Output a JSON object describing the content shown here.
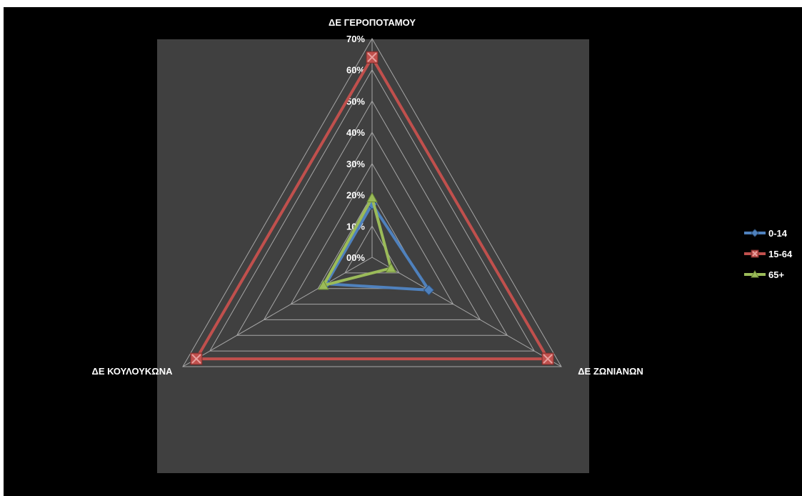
{
  "chart_data": {
    "type": "radar",
    "categories": [
      "ΔΕ ΓΕΡΟΠΟΤΑΜΟΥ",
      "ΔΕ ΖΩΝΙΑΝΩΝ",
      "ΔΕ ΚΟΥΛΟΥΚΩΝΑ"
    ],
    "radial_ticks": [
      "00%",
      "10%",
      "20%",
      "30%",
      "40%",
      "50%",
      "60%",
      "70%"
    ],
    "rlim": [
      0,
      0.7
    ],
    "series": [
      {
        "name": "0-14",
        "values": [
          0.17,
          0.21,
          0.17
        ],
        "color": "#4f81bd",
        "marker": "diamond"
      },
      {
        "name": "15-64",
        "values": [
          0.64,
          0.65,
          0.65
        ],
        "color": "#c0504d",
        "marker": "square"
      },
      {
        "name": "65+",
        "values": [
          0.19,
          0.07,
          0.18
        ],
        "color": "#9bbb59",
        "marker": "triangle"
      }
    ],
    "grid": true,
    "legend_position": "right",
    "plot_background": "#404040",
    "canvas_background": "#000000"
  }
}
